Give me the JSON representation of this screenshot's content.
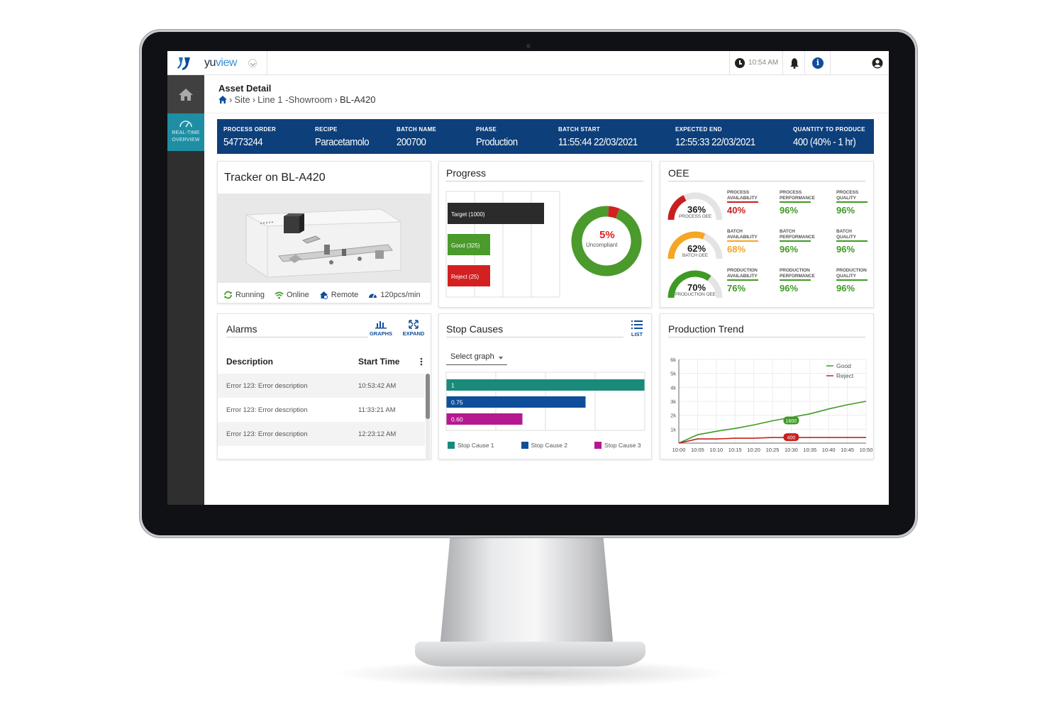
{
  "app": {
    "name_main": "yu",
    "name_accent": "view"
  },
  "topbar": {
    "time": "10:54 AM"
  },
  "sidebar": {
    "realtime_label_1": "REAL-TIME",
    "realtime_label_2": "OVERVIEW"
  },
  "header": {
    "title": "Asset Detail",
    "breadcrumb": [
      "Site",
      "Line 1 -Showroom",
      "BL-A420"
    ],
    "sep": "›"
  },
  "order": {
    "process_order": {
      "label": "PROCESS ORDER",
      "value": "54773244"
    },
    "recipe": {
      "label": "RECIPE",
      "value": "Paracetamolo"
    },
    "batch_name": {
      "label": "BATCH NAME",
      "value": "200700"
    },
    "phase": {
      "label": "PHASE",
      "value": "Production"
    },
    "batch_start": {
      "label": "BATCH START",
      "value": "11:55:44 22/03/2021"
    },
    "expected_end": {
      "label": "EXPECTED END",
      "value": "12:55:33 22/03/2021"
    },
    "quantity": {
      "label": "QUANTITY TO PRODUCE",
      "value": "400 (40% - 1 hr)"
    }
  },
  "tracker": {
    "title": "Tracker on BL-A420",
    "status": [
      {
        "icon": "refresh-icon",
        "label": "Running"
      },
      {
        "icon": "wifi-icon",
        "label": "Online"
      },
      {
        "icon": "remote-icon",
        "label": "Remote"
      },
      {
        "icon": "speed-icon",
        "label": "120pcs/min"
      }
    ]
  },
  "progress": {
    "title": "Progress",
    "donut_value": "5%",
    "donut_label": "Uncompliant",
    "colors": {
      "target": "#2b2b2b",
      "good": "#4a9a2c",
      "reject": "#d32020"
    }
  },
  "oee": {
    "title": "OEE",
    "rows": [
      {
        "gauge_value": "36%",
        "gauge_fraction": 0.36,
        "gauge_label": "PROCESS OEE",
        "gauge_color": "#c8201f",
        "metrics": [
          {
            "label": "PROCESS AVAILABILITY",
            "value": "40%",
            "color": "#c8201f"
          },
          {
            "label": "PROCESS PERFORMANCE",
            "value": "96%",
            "color": "#3f9a24"
          },
          {
            "label": "PROCESS QUALITY",
            "value": "96%",
            "color": "#3f9a24"
          }
        ]
      },
      {
        "gauge_value": "62%",
        "gauge_fraction": 0.62,
        "gauge_label": "BATCH OEE",
        "gauge_color": "#f5a623",
        "metrics": [
          {
            "label": "BATCH AVAILABILITY",
            "value": "68%",
            "color": "#f5a623"
          },
          {
            "label": "BATCH PERFORMANCE",
            "value": "96%",
            "color": "#3f9a24"
          },
          {
            "label": "BATCH QUALITY",
            "value": "96%",
            "color": "#3f9a24"
          }
        ]
      },
      {
        "gauge_value": "70%",
        "gauge_fraction": 0.7,
        "gauge_label": "PRODUCTION OEE",
        "gauge_color": "#3f9a24",
        "metrics": [
          {
            "label": "PRODUCTION AVAILABILITY",
            "value": "76%",
            "color": "#3f9a24"
          },
          {
            "label": "PRODUCTION PERFORMANCE",
            "value": "96%",
            "color": "#3f9a24"
          },
          {
            "label": "PRODUCTION QUALITY",
            "value": "96%",
            "color": "#3f9a24"
          }
        ]
      }
    ]
  },
  "alarms": {
    "title": "Alarms",
    "graphs_label": "GRAPHS",
    "expand_label": "EXPAND",
    "col_description": "Description",
    "col_start_time": "Start Time",
    "rows": [
      {
        "description": "Error 123: Error description",
        "time": "10:53:42 AM"
      },
      {
        "description": "Error 123: Error description",
        "time": "11:33:21 AM"
      },
      {
        "description": "Error 123: Error description",
        "time": "12:23:12 AM"
      }
    ]
  },
  "stop_causes": {
    "title": "Stop Causes",
    "list_label": "LIST",
    "select_placeholder": "Select graph"
  },
  "production_trend": {
    "title": "Production Trend",
    "label_good": "1600",
    "label_reject": "400"
  },
  "chart_data": [
    {
      "type": "bar",
      "title": "Progress",
      "categories": [
        "Target (1000)",
        "Good (325)",
        "Reject (25)"
      ],
      "values": [
        1000,
        325,
        25
      ],
      "colors": [
        "#2b2b2b",
        "#4a9a2c",
        "#d32020"
      ]
    },
    {
      "type": "pie",
      "title": "Progress",
      "categories": [
        "Uncompliant",
        "Compliant"
      ],
      "values": [
        5,
        95
      ],
      "colors": [
        "#d32020",
        "#4a9a2c"
      ]
    },
    {
      "type": "bar",
      "title": "Stop Causes",
      "categories": [
        "Stop Cause 1",
        "Stop Cause 2",
        "Stop Cause 3"
      ],
      "labels": [
        "1",
        "0.75",
        "0.60"
      ],
      "values": [
        1,
        0.75,
        0.6
      ],
      "xlim": [
        0,
        1
      ],
      "colors": [
        "#1a8a7a",
        "#0f4e9a",
        "#b5188f"
      ]
    },
    {
      "type": "line",
      "title": "Production Trend",
      "x": [
        "10:00",
        "10:05",
        "10:10",
        "10:15",
        "10:20",
        "10:25",
        "10:30",
        "10:35",
        "10:40",
        "10:45",
        "10:50"
      ],
      "ylim": [
        0,
        6000
      ],
      "yticks": [
        "1k",
        "2k",
        "3k",
        "4k",
        "5k",
        "6k"
      ],
      "series": [
        {
          "name": "Good",
          "color": "#3f9a24",
          "values": [
            0,
            600,
            850,
            1050,
            1300,
            1600,
            1850,
            2100,
            2450,
            2750,
            3000
          ]
        },
        {
          "name": "Reject",
          "color": "#c8201f",
          "values": [
            0,
            300,
            300,
            350,
            350,
            400,
            400,
            400,
            400,
            400,
            400
          ]
        }
      ],
      "grid": true,
      "legend": "top-right"
    }
  ]
}
